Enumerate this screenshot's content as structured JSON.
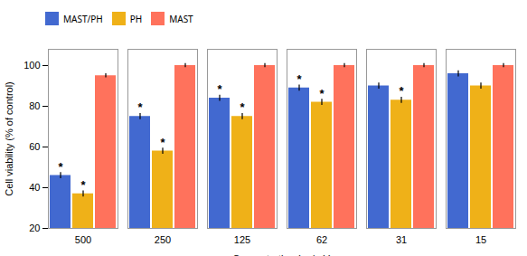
{
  "chart_data": {
    "type": "bar",
    "xlabel": "Concentration (µg/mL)",
    "ylabel": "Cell viability (% of control)",
    "categories": [
      "500",
      "250",
      "125",
      "62",
      "31",
      "15"
    ],
    "series": [
      {
        "name": "MAST/PH",
        "values": [
          46,
          75,
          84,
          89,
          90,
          96
        ],
        "errors": [
          1.5,
          1.5,
          1.5,
          1.5,
          1.5,
          1.5
        ]
      },
      {
        "name": "PH",
        "values": [
          37,
          58,
          75,
          82,
          83,
          90
        ],
        "errors": [
          1.5,
          1.5,
          1.5,
          1.5,
          1.5,
          1.5
        ]
      },
      {
        "name": "MAST",
        "values": [
          95,
          100,
          100,
          100,
          100,
          100
        ],
        "errors": [
          1.0,
          1.0,
          1.0,
          1.0,
          1.0,
          1.0
        ]
      }
    ],
    "annotations": [
      {
        "text": "*",
        "series": "MAST/PH",
        "category": "500"
      },
      {
        "text": "*",
        "series": "MAST/PH",
        "category": "250"
      },
      {
        "text": "*",
        "series": "MAST/PH",
        "category": "125"
      },
      {
        "text": "*",
        "series": "MAST/PH",
        "category": "62"
      },
      {
        "text": "*",
        "series": "PH",
        "category": "500"
      },
      {
        "text": "*",
        "series": "PH",
        "category": "250"
      },
      {
        "text": "*",
        "series": "PH",
        "category": "125"
      },
      {
        "text": "*",
        "series": "PH",
        "category": "62"
      },
      {
        "text": "*",
        "series": "PH",
        "category": "31"
      }
    ],
    "ylim": [
      20,
      108
    ],
    "yticks": [
      20,
      40,
      60,
      80,
      100
    ],
    "grid": false,
    "legend": "top"
  }
}
